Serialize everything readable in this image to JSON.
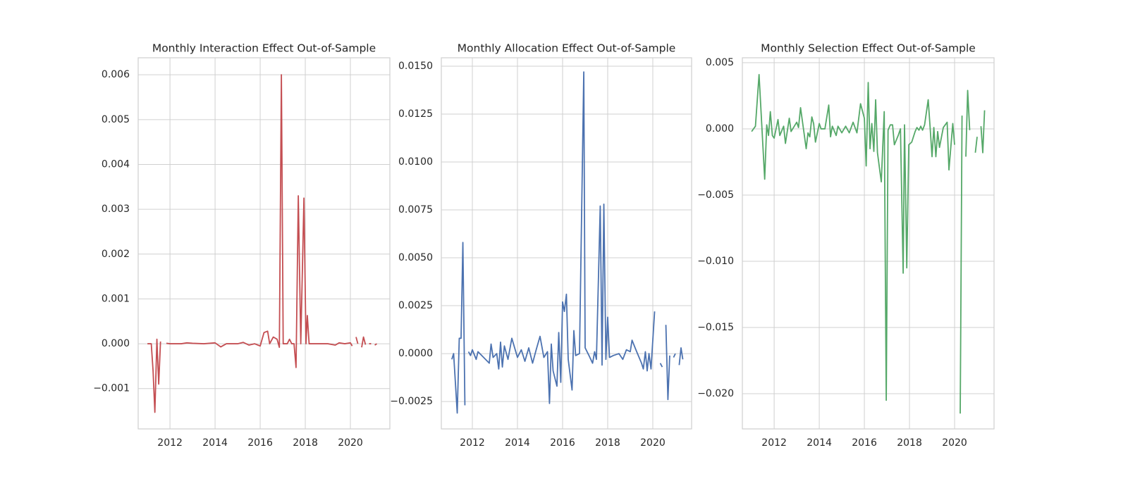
{
  "chart_data": [
    {
      "type": "line",
      "title": "Monthly Interaction Effect Out-of-Sample",
      "color": "#c44e52",
      "grid": true,
      "xlim": [
        2010.59,
        2021.75
      ],
      "xticks": [
        2012,
        2014,
        2016,
        2018,
        2020
      ],
      "ylim": [
        -0.0019,
        0.00638
      ],
      "yticks": [
        {
          "value": -0.001,
          "label": "−0.001"
        },
        {
          "value": 0,
          "label": "0.000"
        },
        {
          "value": 0.001,
          "label": "0.001"
        },
        {
          "value": 0.002,
          "label": "0.002"
        },
        {
          "value": 0.003,
          "label": "0.003"
        },
        {
          "value": 0.004,
          "label": "0.004"
        },
        {
          "value": 0.005,
          "label": "0.005"
        },
        {
          "value": 0.006,
          "label": "0.006"
        }
      ],
      "x": [
        2011.0,
        2011.17,
        2011.25,
        2011.33,
        2011.42,
        2011.5,
        2011.58,
        2011.7,
        2011.84,
        2012.0,
        2012.5,
        2012.75,
        2013.0,
        2013.5,
        2014.0,
        2014.25,
        2014.5,
        2015.0,
        2015.25,
        2015.5,
        2015.75,
        2016.0,
        2016.17,
        2016.33,
        2016.42,
        2016.58,
        2016.75,
        2016.85,
        2016.94,
        2017.02,
        2017.2,
        2017.3,
        2017.4,
        2017.5,
        2017.59,
        2017.69,
        2017.8,
        2017.94,
        2018.03,
        2018.09,
        2018.17,
        2018.5,
        2019.0,
        2019.33,
        2019.5,
        2019.75,
        2020.0,
        2020.08,
        2020.17,
        2020.25,
        2020.33,
        2020.42,
        2020.5,
        2020.58,
        2020.67,
        2020.75,
        2020.83,
        2020.92,
        2021.0,
        2021.08,
        2021.17
      ],
      "values": [
        0.0,
        0.0,
        -0.0006,
        -0.00153,
        0.0001,
        -0.0009,
        5e-05,
        null,
        1e-05,
        0.0,
        0.0,
        2e-05,
        1e-05,
        0.0,
        2e-05,
        -7e-05,
        0.0,
        0.0,
        3e-05,
        -3e-05,
        0.0,
        -5e-05,
        0.00025,
        0.00028,
        0.0,
        0.00015,
        0.0001,
        -8e-05,
        0.006,
        0.0,
        0.0,
        0.0001,
        0.0,
        0.0,
        -0.00053,
        0.0033,
        0.0,
        0.00325,
        0.0,
        0.00063,
        0.0,
        0.0,
        0.0,
        -3e-05,
        2e-05,
        0.0,
        2e-05,
        -5e-05,
        null,
        0.00015,
        0.0,
        null,
        -8e-05,
        0.00015,
        -2e-05,
        null,
        0.0,
        0.0,
        null,
        -3e-05,
        0.0
      ]
    },
    {
      "type": "line",
      "title": "Monthly Allocation Effect Out-of-Sample",
      "color": "#4c72b0",
      "grid": true,
      "xlim": [
        2010.625,
        2021.72
      ],
      "xticks": [
        2012,
        2014,
        2016,
        2018,
        2020
      ],
      "ylim": [
        -0.00393,
        0.01544
      ],
      "yticks": [
        {
          "value": -0.0025,
          "label": "−0.0025"
        },
        {
          "value": 0,
          "label": "0.0000"
        },
        {
          "value": 0.0025,
          "label": "0.0025"
        },
        {
          "value": 0.005,
          "label": "0.0050"
        },
        {
          "value": 0.0075,
          "label": "0.0075"
        },
        {
          "value": 0.01,
          "label": "0.0100"
        },
        {
          "value": 0.0125,
          "label": "0.0125"
        },
        {
          "value": 0.015,
          "label": "0.0150"
        }
      ],
      "x": [
        2011.09,
        2011.17,
        2011.33,
        2011.42,
        2011.5,
        2011.58,
        2011.67,
        2011.75,
        2011.83,
        2011.92,
        2012.0,
        2012.17,
        2012.25,
        2012.5,
        2012.75,
        2012.83,
        2012.92,
        2013.08,
        2013.17,
        2013.25,
        2013.33,
        2013.42,
        2013.58,
        2013.75,
        2014.0,
        2014.17,
        2014.33,
        2014.5,
        2014.67,
        2014.83,
        2015.0,
        2015.17,
        2015.33,
        2015.42,
        2015.5,
        2015.58,
        2015.75,
        2015.83,
        2015.92,
        2016.0,
        2016.08,
        2016.17,
        2016.25,
        2016.42,
        2016.5,
        2016.58,
        2016.75,
        2016.94,
        2017.0,
        2017.17,
        2017.33,
        2017.42,
        2017.5,
        2017.67,
        2017.75,
        2017.83,
        2017.92,
        2018.0,
        2018.08,
        2018.25,
        2018.5,
        2018.67,
        2018.83,
        2019.0,
        2019.08,
        2019.25,
        2019.5,
        2019.58,
        2019.67,
        2019.75,
        2019.83,
        2019.92,
        2020.08,
        2020.17,
        2020.33,
        2020.42,
        2020.5,
        2020.58,
        2020.67,
        2020.75,
        2020.83,
        2020.92,
        2021.0,
        2021.08,
        2021.17,
        2021.25,
        2021.33
      ],
      "values": [
        -0.0003,
        0.0,
        -0.0031,
        0.0008,
        0.0008,
        0.0058,
        -0.0027,
        null,
        0.0001,
        -0.0001,
        0.0002,
        -0.0003,
        0.0001,
        -0.0002,
        -0.0005,
        0.0005,
        -0.0002,
        0.0,
        -0.0008,
        0.0006,
        -0.0007,
        0.0004,
        -0.0003,
        0.0008,
        -0.0002,
        0.0002,
        -0.0004,
        0.0003,
        -0.0005,
        0.0002,
        0.0009,
        -0.0002,
        0.0001,
        -0.0026,
        0.0005,
        -0.0009,
        -0.0017,
        0.0011,
        -0.0015,
        0.0027,
        0.0022,
        0.0031,
        -0.0003,
        -0.0019,
        0.0012,
        -0.0001,
        0.0,
        0.0147,
        0.0003,
        -0.0001,
        -0.0005,
        0.0001,
        -0.0003,
        0.0077,
        -0.0006,
        0.0078,
        -0.0003,
        0.0019,
        -0.0002,
        -0.0001,
        0.0,
        -0.0003,
        0.0002,
        0.0001,
        0.0007,
        0.0002,
        -0.0005,
        -0.0008,
        0.0001,
        -0.0009,
        0.0,
        -0.0008,
        0.0022,
        null,
        -0.0005,
        -0.0007,
        null,
        0.0015,
        -0.0024,
        -0.0001,
        null,
        -0.0002,
        0.0,
        null,
        -0.0006,
        0.0003,
        -0.0003
      ]
    },
    {
      "type": "line",
      "title": "Monthly Selection Effect Out-of-Sample",
      "color": "#55a868",
      "grid": true,
      "xlim": [
        2010.59,
        2021.75
      ],
      "xticks": [
        2012,
        2014,
        2016,
        2018,
        2020
      ],
      "ylim": [
        -0.02266,
        0.00537
      ],
      "yticks": [
        {
          "value": -0.02,
          "label": "−0.020"
        },
        {
          "value": -0.015,
          "label": "−0.015"
        },
        {
          "value": -0.01,
          "label": "−0.010"
        },
        {
          "value": -0.005,
          "label": "−0.005"
        },
        {
          "value": 0,
          "label": "0.000"
        },
        {
          "value": 0.005,
          "label": "0.005"
        }
      ],
      "x": [
        2011.0,
        2011.17,
        2011.33,
        2011.58,
        2011.67,
        2011.75,
        2011.83,
        2011.92,
        2012.0,
        2012.17,
        2012.25,
        2012.42,
        2012.5,
        2012.67,
        2012.75,
        2013.0,
        2013.08,
        2013.17,
        2013.42,
        2013.5,
        2013.58,
        2013.67,
        2013.75,
        2013.83,
        2014.0,
        2014.08,
        2014.25,
        2014.42,
        2014.5,
        2014.58,
        2014.75,
        2014.83,
        2015.0,
        2015.17,
        2015.33,
        2015.5,
        2015.67,
        2015.83,
        2016.0,
        2016.08,
        2016.17,
        2016.25,
        2016.33,
        2016.42,
        2016.5,
        2016.58,
        2016.75,
        2016.88,
        2016.97,
        2017.05,
        2017.15,
        2017.25,
        2017.33,
        2017.5,
        2017.6,
        2017.72,
        2017.78,
        2017.88,
        2017.97,
        2018.1,
        2018.25,
        2018.33,
        2018.42,
        2018.5,
        2018.58,
        2018.67,
        2018.83,
        2018.92,
        2019.0,
        2019.08,
        2019.17,
        2019.25,
        2019.33,
        2019.5,
        2019.67,
        2019.75,
        2019.92,
        2020.0,
        2020.08,
        2020.25,
        2020.33,
        2020.42,
        2020.5,
        2020.58,
        2020.67,
        2020.75,
        2020.92,
        2021.0,
        2021.08,
        2021.17,
        2021.25,
        2021.33
      ],
      "values": [
        -0.0002,
        0.0002,
        0.0041,
        -0.0038,
        0.0003,
        -0.0005,
        0.0013,
        -0.0005,
        -0.0007,
        0.0007,
        -0.0005,
        0.0002,
        -0.0011,
        0.0008,
        -0.0002,
        0.0005,
        0.0001,
        0.0016,
        -0.0015,
        -0.0003,
        -0.0006,
        0.0009,
        0.0004,
        -0.001,
        0.0004,
        0.0,
        0.0,
        0.0018,
        -0.0006,
        0.0002,
        -0.0005,
        0.0002,
        -0.0003,
        0.0002,
        -0.0003,
        0.0005,
        -0.0003,
        0.0019,
        0.0008,
        -0.0028,
        0.0035,
        -0.0015,
        0.0004,
        -0.0017,
        0.0022,
        -0.0018,
        -0.004,
        0.0013,
        -0.0205,
        -0.0001,
        0.0003,
        0.0003,
        -0.0012,
        -0.0005,
        0.0,
        -0.0109,
        0.0003,
        -0.0105,
        -0.0012,
        -0.001,
        -0.0002,
        0.0001,
        -0.0001,
        0.0002,
        -0.0001,
        0.0003,
        0.0022,
        0.0,
        -0.0021,
        0.0001,
        -0.0021,
        -0.0002,
        -0.0014,
        0.0001,
        0.0005,
        -0.0031,
        0.0004,
        -0.0012,
        null,
        -0.0215,
        0.001,
        null,
        -0.0021,
        0.0029,
        -0.0001,
        null,
        -0.0018,
        -0.0006,
        null,
        0.0002,
        -0.0018,
        0.0014
      ]
    }
  ]
}
